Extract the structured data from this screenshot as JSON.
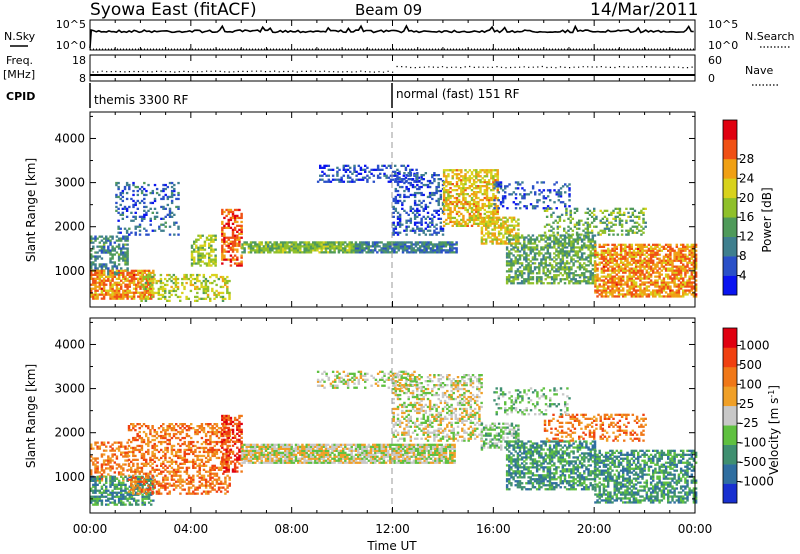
{
  "header": {
    "station": "Syowa East (fitACF)",
    "beam": "Beam 09",
    "date": "14/Mar/2011"
  },
  "top_panels": {
    "nsky": {
      "label": "N.Sky",
      "tick_top": "10^5",
      "tick_bottom": "10^0"
    },
    "nsearch": {
      "label": "N.Search",
      "tick_top": "10^5",
      "tick_bottom": "10^0"
    },
    "freq": {
      "label_line1": "Freq.",
      "label_line2": "[MHz]",
      "tick_top": "18",
      "tick_bottom": "8"
    },
    "nave": {
      "label": "Nave",
      "tick_top": "60",
      "tick_bottom": "0"
    },
    "cpid": {
      "label": "CPID",
      "modes": [
        {
          "start_hour": 0,
          "text": "themis 3300 RF"
        },
        {
          "start_hour": 12,
          "text": "normal (fast) 151 RF"
        }
      ]
    }
  },
  "x_axis": {
    "title": "Time UT",
    "range_hours": [
      0,
      24
    ],
    "ticks": [
      {
        "hour": 0,
        "label": "00:00"
      },
      {
        "hour": 4,
        "label": "04:00"
      },
      {
        "hour": 8,
        "label": "08:00"
      },
      {
        "hour": 12,
        "label": "12:00"
      },
      {
        "hour": 16,
        "label": "16:00"
      },
      {
        "hour": 20,
        "label": "20:00"
      },
      {
        "hour": 24,
        "label": "00:00"
      }
    ]
  },
  "chart_data": [
    {
      "type": "heatmap",
      "parameter": "power",
      "ylabel": "Slant Range [km]",
      "ylim": [
        180,
        4600
      ],
      "yticks": [
        1000,
        2000,
        3000,
        4000
      ],
      "colorbar": {
        "title": "Power [dB]",
        "range": [
          0,
          32
        ],
        "labels": [
          4,
          8,
          12,
          16,
          20,
          24,
          28
        ],
        "colors": [
          "#0a14f0",
          "#2a50c8",
          "#3f7f8e",
          "#4f9a5a",
          "#8fc02a",
          "#d8d21c",
          "#f0a014",
          "#f05014",
          "#e00010"
        ]
      },
      "echo_regions": [
        {
          "t0": 0.0,
          "t1": 1.5,
          "r0": 900,
          "r1": 1800,
          "level": 10,
          "density": 0.55
        },
        {
          "t0": 0.0,
          "t1": 2.5,
          "r0": 350,
          "r1": 1000,
          "level": 24,
          "density": 0.75
        },
        {
          "t0": 2.0,
          "t1": 5.5,
          "r0": 300,
          "r1": 900,
          "level": 18,
          "density": 0.4
        },
        {
          "t0": 1.0,
          "t1": 3.5,
          "r0": 1800,
          "r1": 3000,
          "level": 7,
          "density": 0.25
        },
        {
          "t0": 4.0,
          "t1": 5.0,
          "r0": 1100,
          "r1": 1800,
          "level": 16,
          "density": 0.5
        },
        {
          "t0": 5.2,
          "t1": 6.0,
          "r0": 1100,
          "r1": 2400,
          "level": 26,
          "density": 0.55
        },
        {
          "t0": 6.0,
          "t1": 10.5,
          "r0": 1400,
          "r1": 1650,
          "level": 15,
          "density": 0.85
        },
        {
          "t0": 10.5,
          "t1": 14.5,
          "r0": 1400,
          "r1": 1650,
          "level": 9,
          "density": 0.85
        },
        {
          "t0": 9.0,
          "t1": 13.0,
          "r0": 3000,
          "r1": 3400,
          "level": 5,
          "density": 0.35
        },
        {
          "t0": 12.0,
          "t1": 14.0,
          "r0": 1800,
          "r1": 3200,
          "level": 6,
          "density": 0.35
        },
        {
          "t0": 14.0,
          "t1": 16.2,
          "r0": 2000,
          "r1": 3300,
          "level": 21,
          "density": 0.6
        },
        {
          "t0": 15.5,
          "t1": 17.0,
          "r0": 1600,
          "r1": 2200,
          "level": 20,
          "density": 0.65
        },
        {
          "t0": 16.5,
          "t1": 20.0,
          "r0": 700,
          "r1": 1800,
          "level": 13,
          "density": 0.6
        },
        {
          "t0": 18.0,
          "t1": 22.0,
          "r0": 1800,
          "r1": 2400,
          "level": 14,
          "density": 0.3
        },
        {
          "t0": 20.0,
          "t1": 24.0,
          "r0": 400,
          "r1": 1600,
          "level": 24,
          "density": 0.7
        },
        {
          "t0": 16.0,
          "t1": 19.0,
          "r0": 2400,
          "r1": 3000,
          "level": 6,
          "density": 0.25
        }
      ]
    },
    {
      "type": "heatmap",
      "parameter": "velocity",
      "ylabel": "Slant Range [km]",
      "ylim": [
        180,
        4600
      ],
      "yticks": [
        1000,
        2000,
        3000,
        4000
      ],
      "colorbar": {
        "title": "Velocity [m s^-1]",
        "labels": [
          "1000",
          "500",
          "100",
          "25",
          "-25",
          "-100",
          "-500",
          "-1000"
        ],
        "colors": [
          "#1830d0",
          "#2f6ea0",
          "#3f8f70",
          "#5fc040",
          "#c8c8c8",
          "#f0a028",
          "#f07818",
          "#f04010",
          "#e00010"
        ]
      },
      "echo_regions": [
        {
          "t0": 0.0,
          "t1": 1.5,
          "r0": 900,
          "r1": 1800,
          "level": 6,
          "density": 0.45
        },
        {
          "t0": 0.0,
          "t1": 2.5,
          "r0": 350,
          "r1": 1000,
          "level": 2,
          "density": 0.6
        },
        {
          "t0": 1.5,
          "t1": 5.5,
          "r0": 600,
          "r1": 2200,
          "level": 6,
          "density": 0.45
        },
        {
          "t0": 5.2,
          "t1": 6.0,
          "r0": 1100,
          "r1": 2400,
          "level": 7,
          "density": 0.55
        },
        {
          "t0": 6.0,
          "t1": 14.5,
          "r0": 1300,
          "r1": 1750,
          "level": 4,
          "density": 0.85
        },
        {
          "t0": 9.0,
          "t1": 13.0,
          "r0": 3000,
          "r1": 3400,
          "level": 4,
          "density": 0.35
        },
        {
          "t0": 12.0,
          "t1": 15.5,
          "r0": 1800,
          "r1": 3300,
          "level": 4,
          "density": 0.45
        },
        {
          "t0": 15.5,
          "t1": 17.0,
          "r0": 1600,
          "r1": 2200,
          "level": 3,
          "density": 0.55
        },
        {
          "t0": 16.5,
          "t1": 20.0,
          "r0": 700,
          "r1": 1800,
          "level": 2,
          "density": 0.6
        },
        {
          "t0": 18.0,
          "t1": 22.0,
          "r0": 1800,
          "r1": 2400,
          "level": 6,
          "density": 0.3
        },
        {
          "t0": 20.0,
          "t1": 24.0,
          "r0": 400,
          "r1": 1600,
          "level": 2,
          "density": 0.6
        },
        {
          "t0": 16.0,
          "t1": 19.0,
          "r0": 2400,
          "r1": 3000,
          "level": 3,
          "density": 0.25
        }
      ]
    }
  ]
}
